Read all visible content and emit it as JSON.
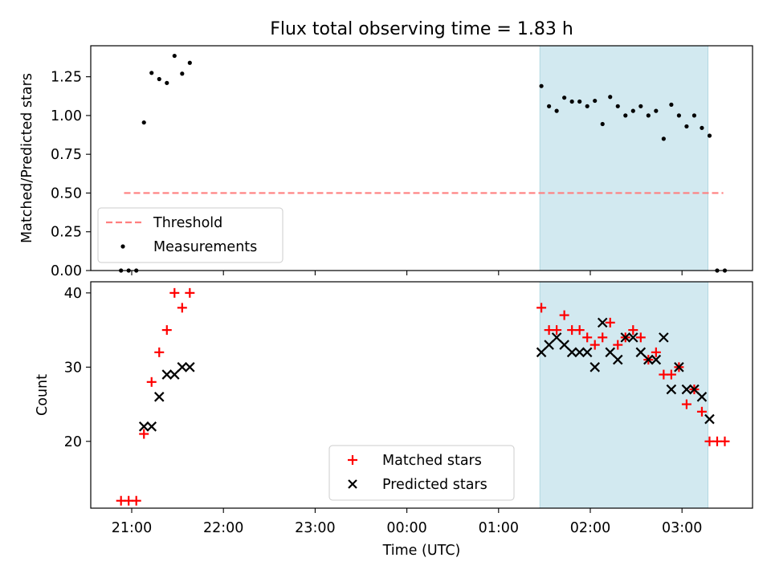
{
  "chart_data": [
    {
      "type": "scatter",
      "title": "Flux total observing time = 1.83 h",
      "xlabel": "",
      "ylabel": "Matched/Predicted stars",
      "x_unit": "time (UTC), hours since 21:00 on observation night",
      "ylim": [
        0,
        1.45
      ],
      "yticks": [
        0.0,
        0.25,
        0.5,
        0.75,
        1.0,
        1.25
      ],
      "ytick_labels": [
        "0.00",
        "0.25",
        "0.50",
        "0.75",
        "1.00",
        "1.25"
      ],
      "grid": false,
      "legend_position": "lower-left",
      "shaded_interval": {
        "from": "01:27",
        "to": "03:17",
        "color": "#d2e9f0"
      },
      "series": [
        {
          "name": "Threshold",
          "kind": "dashed-line",
          "color": "#ff7f7f",
          "x": [
            "20:55",
            "03:27"
          ],
          "y": [
            0.5,
            0.5
          ]
        },
        {
          "name": "Measurements",
          "kind": "dots",
          "color": "#000000",
          "points": [
            [
              "20:53",
              0.0
            ],
            [
              "20:58",
              0.0
            ],
            [
              "21:03",
              0.0
            ],
            [
              "21:08",
              0.955
            ],
            [
              "21:13",
              1.275
            ],
            [
              "21:18",
              1.235
            ],
            [
              "21:23",
              1.21
            ],
            [
              "21:28",
              1.385
            ],
            [
              "21:33",
              1.27
            ],
            [
              "21:38",
              1.34
            ],
            [
              "01:28",
              1.19
            ],
            [
              "01:33",
              1.06
            ],
            [
              "01:38",
              1.03
            ],
            [
              "01:43",
              1.115
            ],
            [
              "01:48",
              1.09
            ],
            [
              "01:53",
              1.09
            ],
            [
              "01:58",
              1.06
            ],
            [
              "02:03",
              1.095
            ],
            [
              "02:08",
              0.945
            ],
            [
              "02:13",
              1.12
            ],
            [
              "02:18",
              1.06
            ],
            [
              "02:23",
              1.0
            ],
            [
              "02:28",
              1.03
            ],
            [
              "02:33",
              1.06
            ],
            [
              "02:38",
              1.0
            ],
            [
              "02:43",
              1.03
            ],
            [
              "02:48",
              0.85
            ],
            [
              "02:53",
              1.07
            ],
            [
              "02:58",
              1.0
            ],
            [
              "03:03",
              0.93
            ],
            [
              "03:08",
              1.0
            ],
            [
              "03:13",
              0.92
            ],
            [
              "03:18",
              0.87
            ],
            [
              "03:23",
              0.0
            ],
            [
              "03:28",
              0.0
            ]
          ]
        }
      ]
    },
    {
      "type": "scatter",
      "title": "",
      "xlabel": "Time (UTC)",
      "ylabel": "Count",
      "ylim": [
        11,
        41.5
      ],
      "yticks": [
        20,
        30,
        40
      ],
      "ytick_labels": [
        "20",
        "30",
        "40"
      ],
      "xticks": [
        "21:00",
        "22:00",
        "23:00",
        "00:00",
        "01:00",
        "02:00",
        "03:00"
      ],
      "grid": false,
      "legend_position": "lower-center",
      "shaded_interval": {
        "from": "01:27",
        "to": "03:17",
        "color": "#d2e9f0"
      },
      "series": [
        {
          "name": "Matched stars",
          "marker": "plus",
          "color": "#ff0000",
          "points": [
            [
              "20:53",
              12
            ],
            [
              "20:58",
              12
            ],
            [
              "21:03",
              12
            ],
            [
              "21:08",
              21
            ],
            [
              "21:13",
              28
            ],
            [
              "21:18",
              32
            ],
            [
              "21:23",
              35
            ],
            [
              "21:28",
              40
            ],
            [
              "21:33",
              38
            ],
            [
              "21:38",
              40
            ],
            [
              "01:28",
              38
            ],
            [
              "01:33",
              35
            ],
            [
              "01:38",
              35
            ],
            [
              "01:43",
              37
            ],
            [
              "01:48",
              35
            ],
            [
              "01:53",
              35
            ],
            [
              "01:58",
              34
            ],
            [
              "02:03",
              33
            ],
            [
              "02:08",
              34
            ],
            [
              "02:13",
              36
            ],
            [
              "02:18",
              33
            ],
            [
              "02:23",
              34
            ],
            [
              "02:28",
              35
            ],
            [
              "02:33",
              34
            ],
            [
              "02:38",
              31
            ],
            [
              "02:43",
              32
            ],
            [
              "02:48",
              29
            ],
            [
              "02:53",
              29
            ],
            [
              "02:58",
              30
            ],
            [
              "03:03",
              25
            ],
            [
              "03:08",
              27
            ],
            [
              "03:13",
              24
            ],
            [
              "03:18",
              20
            ],
            [
              "03:23",
              20
            ],
            [
              "03:28",
              20
            ]
          ]
        },
        {
          "name": "Predicted stars",
          "marker": "x",
          "color": "#000000",
          "points": [
            [
              "21:08",
              22
            ],
            [
              "21:13",
              22
            ],
            [
              "21:18",
              26
            ],
            [
              "21:23",
              29
            ],
            [
              "21:28",
              29
            ],
            [
              "21:33",
              30
            ],
            [
              "21:38",
              30
            ],
            [
              "01:28",
              32
            ],
            [
              "01:33",
              33
            ],
            [
              "01:38",
              34
            ],
            [
              "01:43",
              33
            ],
            [
              "01:48",
              32
            ],
            [
              "01:53",
              32
            ],
            [
              "01:58",
              32
            ],
            [
              "02:03",
              30
            ],
            [
              "02:08",
              36
            ],
            [
              "02:13",
              32
            ],
            [
              "02:18",
              31
            ],
            [
              "02:23",
              34
            ],
            [
              "02:28",
              34
            ],
            [
              "02:33",
              32
            ],
            [
              "02:38",
              31
            ],
            [
              "02:43",
              31
            ],
            [
              "02:48",
              34
            ],
            [
              "02:53",
              27
            ],
            [
              "02:58",
              30
            ],
            [
              "03:03",
              27
            ],
            [
              "03:08",
              27
            ],
            [
              "03:13",
              26
            ],
            [
              "03:18",
              23
            ]
          ]
        }
      ]
    }
  ]
}
